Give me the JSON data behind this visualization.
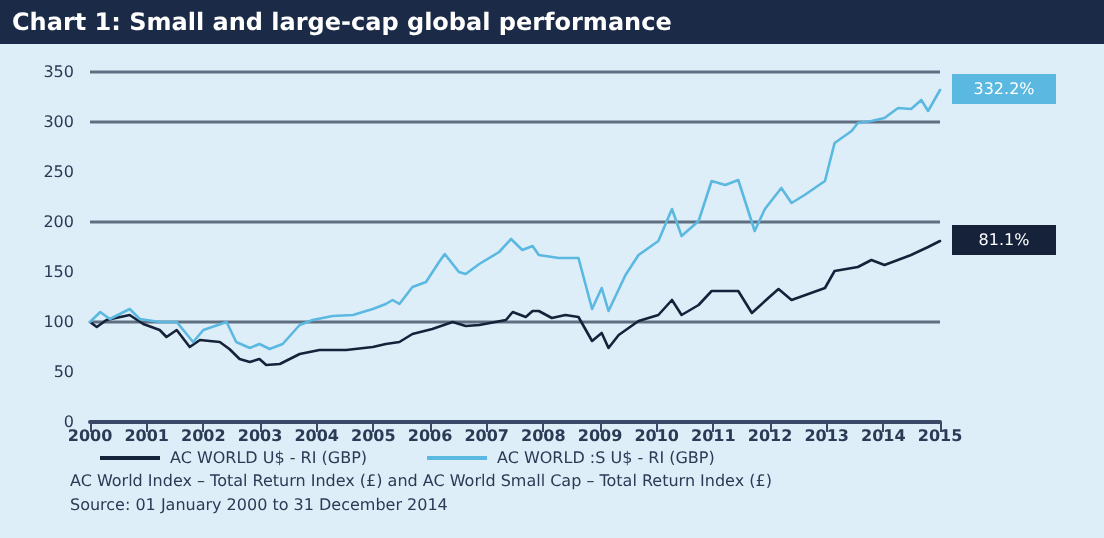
{
  "chart_data": {
    "type": "line",
    "title": "Chart 1: Small and large-cap global performance",
    "xlim": [
      2000,
      2015
    ],
    "xticks": [
      2000,
      2001,
      2002,
      2003,
      2004,
      2005,
      2006,
      2007,
      2008,
      2009,
      2010,
      2011,
      2012,
      2013,
      2014,
      2015
    ],
    "ylim": [
      0,
      350
    ],
    "yticks": [
      0,
      50,
      100,
      150,
      200,
      250,
      300,
      350
    ],
    "grid": "y",
    "legend": "bottom",
    "marker": "none",
    "series": [
      {
        "name": "AC WORLD U$ - RI (GBP)",
        "color": "#16223a",
        "x": [
          2000,
          2000.12,
          2000.29,
          2000.7,
          2000.94,
          2001.23,
          2001.35,
          2001.53,
          2001.76,
          2001.94,
          2002.29,
          2002.46,
          2002.64,
          2002.82,
          2002.99,
          2003.11,
          2003.35,
          2003.7,
          2004.05,
          2004.52,
          2004.99,
          2005.22,
          2005.46,
          2005.69,
          2006.04,
          2006.4,
          2006.63,
          2006.87,
          2007.34,
          2007.46,
          2007.69,
          2007.81,
          2007.92,
          2008.15,
          2008.39,
          2008.62,
          2008.86,
          2009.03,
          2009.15,
          2009.33,
          2009.68,
          2010.03,
          2010.27,
          2010.44,
          2010.74,
          2010.97,
          2011.44,
          2011.68,
          2011.97,
          2012.15,
          2012.38,
          2012.97,
          2013.14,
          2013.55,
          2013.79,
          2014.02,
          2014.49,
          2014.79,
          2015
        ],
        "values": [
          100,
          95,
          102,
          107,
          98,
          92,
          85,
          92,
          75,
          82,
          80,
          73,
          63,
          60,
          63,
          57,
          58,
          68,
          72,
          72,
          75,
          78,
          80,
          88,
          93,
          100,
          96,
          97,
          102,
          110,
          105,
          111,
          111,
          104,
          107,
          105,
          81,
          89,
          74,
          87,
          101,
          107,
          122,
          107,
          117,
          131,
          131,
          109,
          124,
          133,
          122,
          134,
          151,
          155,
          162,
          157,
          167,
          175,
          181
        ]
      },
      {
        "name": "AC WORLD :S U$ - RI (GBP)",
        "color": "#5bb8e0",
        "x": [
          2000,
          2000.18,
          2000.35,
          2000.7,
          2000.88,
          2001.23,
          2001.53,
          2001.82,
          2002.0,
          2002.41,
          2002.58,
          2002.82,
          2002.99,
          2003.17,
          2003.4,
          2003.7,
          2003.93,
          2004.28,
          2004.64,
          2004.99,
          2005.22,
          2005.34,
          2005.46,
          2005.69,
          2005.93,
          2006.16,
          2006.26,
          2006.51,
          2006.63,
          2006.87,
          2007.22,
          2007.43,
          2007.63,
          2007.81,
          2007.92,
          2008.27,
          2008.62,
          2008.86,
          2009.03,
          2009.15,
          2009.45,
          2009.68,
          2010.03,
          2010.27,
          2010.44,
          2010.74,
          2010.97,
          2011.21,
          2011.44,
          2011.73,
          2011.91,
          2012.2,
          2012.38,
          2012.61,
          2012.97,
          2013.14,
          2013.44,
          2013.55,
          2013.79,
          2014.02,
          2014.26,
          2014.49,
          2014.67,
          2014.79,
          2015
        ],
        "values": [
          100,
          110,
          103,
          113,
          103,
          100,
          100,
          80,
          92,
          100,
          80,
          74,
          78,
          73,
          78,
          97,
          102,
          106,
          107,
          113,
          118,
          122,
          118,
          135,
          140,
          160,
          168,
          150,
          148,
          158,
          170,
          183,
          172,
          176,
          167,
          164,
          164,
          113,
          134,
          111,
          147,
          167,
          181,
          213,
          186,
          201,
          241,
          237,
          242,
          191,
          213,
          234,
          219,
          227,
          241,
          279,
          291,
          299,
          301,
          304,
          314,
          313,
          322,
          311,
          332
        ]
      }
    ],
    "annotations": [
      {
        "text": "81.1%",
        "x": 2015,
        "y": 181
      },
      {
        "text": "332.2%",
        "x": 2015,
        "y": 332
      },
      "AC World Index – Total Return Index (£) and AC World Small Cap – Total Return Index (£)",
      "Source: 01 January 2000 to 31 December 2014"
    ]
  }
}
